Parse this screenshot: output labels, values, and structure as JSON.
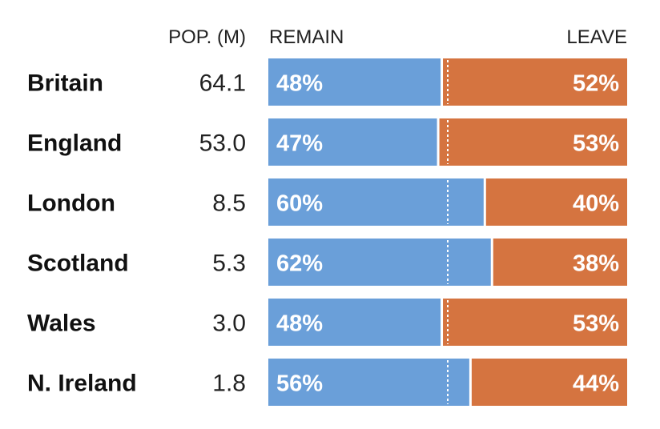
{
  "chart_data": {
    "type": "bar",
    "orientation": "horizontal-stacked",
    "headers": {
      "population": "POP. (M)",
      "remain": "REMAIN",
      "leave": "LEAVE"
    },
    "colors": {
      "remain": "#6a9fd9",
      "leave": "#d57440",
      "midline": "#ffffff",
      "text": "#111111"
    },
    "midpoint": 50,
    "rows": [
      {
        "region": "Britain",
        "population": "64.1",
        "remain": 48,
        "leave": 52,
        "remain_label": "48%",
        "leave_label": "52%"
      },
      {
        "region": "England",
        "population": "53.0",
        "remain": 47,
        "leave": 53,
        "remain_label": "47%",
        "leave_label": "53%"
      },
      {
        "region": "London",
        "population": "8.5",
        "remain": 60,
        "leave": 40,
        "remain_label": "60%",
        "leave_label": "40%"
      },
      {
        "region": "Scotland",
        "population": "5.3",
        "remain": 62,
        "leave": 38,
        "remain_label": "62%",
        "leave_label": "38%"
      },
      {
        "region": "Wales",
        "population": "3.0",
        "remain": 48,
        "leave": 53,
        "remain_label": "48%",
        "leave_label": "53%"
      },
      {
        "region": "N. Ireland",
        "population": "1.8",
        "remain": 56,
        "leave": 44,
        "remain_label": "56%",
        "leave_label": "44%"
      }
    ]
  }
}
